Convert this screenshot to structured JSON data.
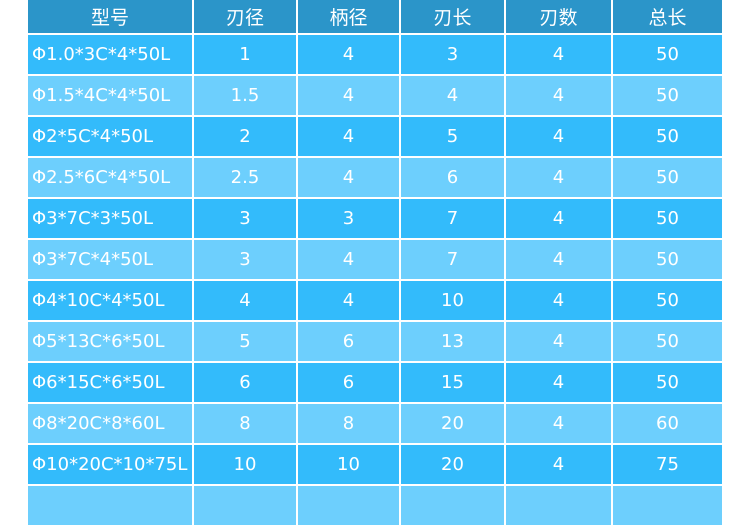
{
  "colors": {
    "header": "#2b95c9",
    "row_dark": "#33bbfb",
    "row_light": "#6dcffd"
  },
  "table": {
    "headers": [
      "型号",
      "刃径",
      "柄径",
      "刃长",
      "刃数",
      "总长"
    ],
    "rows": [
      [
        "Φ1.0*3C*4*50L",
        "1",
        "4",
        "3",
        "4",
        "50"
      ],
      [
        "Φ1.5*4C*4*50L",
        "1.5",
        "4",
        "4",
        "4",
        "50"
      ],
      [
        "Φ2*5C*4*50L",
        "2",
        "4",
        "5",
        "4",
        "50"
      ],
      [
        "Φ2.5*6C*4*50L",
        "2.5",
        "4",
        "6",
        "4",
        "50"
      ],
      [
        "Φ3*7C*3*50L",
        "3",
        "3",
        "7",
        "4",
        "50"
      ],
      [
        "Φ3*7C*4*50L",
        "3",
        "4",
        "7",
        "4",
        "50"
      ],
      [
        "Φ4*10C*4*50L",
        "4",
        "4",
        "10",
        "4",
        "50"
      ],
      [
        "Φ5*13C*6*50L",
        "5",
        "6",
        "13",
        "4",
        "50"
      ],
      [
        "Φ6*15C*6*50L",
        "6",
        "6",
        "15",
        "4",
        "50"
      ],
      [
        "Φ8*20C*8*60L",
        "8",
        "8",
        "20",
        "4",
        "60"
      ],
      [
        "Φ10*20C*10*75L",
        "10",
        "10",
        "20",
        "4",
        "75"
      ],
      [
        "",
        "",
        "",
        "",
        "",
        ""
      ]
    ]
  }
}
